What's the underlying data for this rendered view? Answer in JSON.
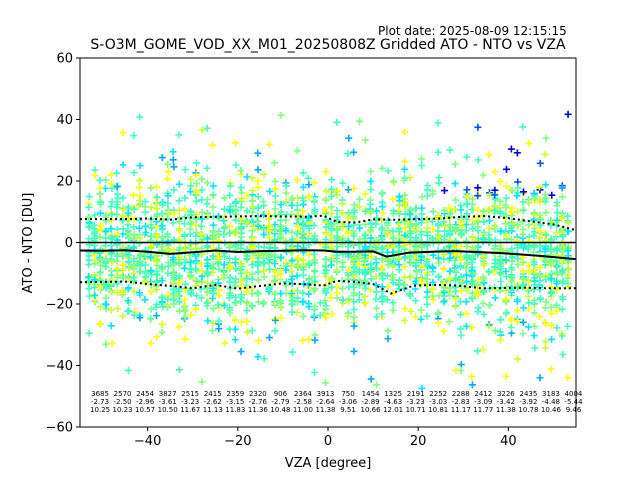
{
  "plot_date": "Plot date: 2025-08-09 12:15:15",
  "chart_data": {
    "type": "scatter",
    "title": "S-O3M_GOME_VOD_XX_M01_20250808Z Gridded ATO - NTO vs VZA",
    "xlabel": "VZA [degree]",
    "ylabel": "ATO - NTO [DU]",
    "xlim": [
      -55,
      55
    ],
    "ylim": [
      -60,
      60
    ],
    "xticks": [
      -40,
      -20,
      0,
      20,
      40
    ],
    "yticks": [
      -60,
      -40,
      -20,
      0,
      20,
      40,
      60
    ],
    "marker": "plus",
    "colors": {
      "yellow": "#ffff00",
      "yellow_green": "#c8ff30",
      "light_green": "#80ff80",
      "aqua_green": "#40ffc0",
      "cyan": "#00e5ff",
      "sky": "#00a8ff",
      "blue": "#0050ff",
      "dark_blue": "#0000e0",
      "zero_line": "#000000",
      "mean_line": "#000000",
      "std_line": "#000000"
    },
    "bins": [
      {
        "center": -51,
        "count": "3685",
        "mean": "-2.73",
        "std": "10.25"
      },
      {
        "center": -46,
        "count": "2570",
        "mean": "-2.50",
        "std": "10.23"
      },
      {
        "center": -41,
        "count": "2454",
        "mean": "-2.96",
        "std": "10.57"
      },
      {
        "center": -36,
        "count": "3827",
        "mean": "-3.61",
        "std": "10.50"
      },
      {
        "center": -31,
        "count": "2515",
        "mean": "-3.23",
        "std": "11.67"
      },
      {
        "center": -26,
        "count": "2415",
        "mean": "-2.62",
        "std": "11.13"
      },
      {
        "center": -21,
        "count": "2359",
        "mean": "-3.15",
        "std": "11.83"
      },
      {
        "center": -16,
        "count": "2320",
        "mean": "-2.76",
        "std": "11.36"
      },
      {
        "center": -11,
        "count": "906",
        "mean": "-2.79",
        "std": "10.48"
      },
      {
        "center": -6,
        "count": "2364",
        "mean": "-2.58",
        "std": "11.00"
      },
      {
        "center": -1,
        "count": "3913",
        "mean": "-2.64",
        "std": "11.38"
      },
      {
        "center": 4,
        "count": "750",
        "mean": "-3.06",
        "std": "9.51"
      },
      {
        "center": 9,
        "count": "1454",
        "mean": "-2.89",
        "std": "10.66"
      },
      {
        "center": 14,
        "count": "1325",
        "mean": "-4.63",
        "std": "12.01"
      },
      {
        "center": 19,
        "count": "2191",
        "mean": "-3.23",
        "std": "10.71"
      },
      {
        "center": 24,
        "count": "2252",
        "mean": "-3.03",
        "std": "10.81"
      },
      {
        "center": 29,
        "count": "2288",
        "mean": "-2.83",
        "std": "11.17"
      },
      {
        "center": 34,
        "count": "2412",
        "mean": "-3.09",
        "std": "11.77"
      },
      {
        "center": 39,
        "count": "3226",
        "mean": "-3.42",
        "std": "11.38"
      },
      {
        "center": 44,
        "count": "2435",
        "mean": "-3.92",
        "std": "10.78"
      },
      {
        "center": 49,
        "count": "3183",
        "mean": "-4.48",
        "std": "10.46"
      },
      {
        "center": 54,
        "count": "4004",
        "mean": "-5.44",
        "std": "9.46"
      }
    ],
    "mean_curve": [
      [
        -55,
        -2.6
      ],
      [
        -50,
        -2.7
      ],
      [
        -45,
        -2.5
      ],
      [
        -40,
        -3.0
      ],
      [
        -35,
        -3.7
      ],
      [
        -30,
        -3.2
      ],
      [
        -25,
        -2.6
      ],
      [
        -20,
        -3.1
      ],
      [
        -15,
        -2.8
      ],
      [
        -10,
        -2.7
      ],
      [
        -5,
        -2.5
      ],
      [
        -1,
        -2.6
      ],
      [
        2,
        -3.0
      ],
      [
        6,
        -3.0
      ],
      [
        10,
        -2.9
      ],
      [
        13,
        -4.6
      ],
      [
        18,
        -3.3
      ],
      [
        23,
        -3.0
      ],
      [
        28,
        -2.8
      ],
      [
        33,
        -3.1
      ],
      [
        38,
        -3.4
      ],
      [
        43,
        -3.9
      ],
      [
        48,
        -4.5
      ],
      [
        55,
        -5.4
      ]
    ],
    "upper_std_curve": [
      [
        -55,
        7.6
      ],
      [
        -45,
        7.6
      ],
      [
        -40,
        7.8
      ],
      [
        -35,
        7.4
      ],
      [
        -30,
        8.2
      ],
      [
        -25,
        8.3
      ],
      [
        -20,
        8.5
      ],
      [
        -15,
        8.6
      ],
      [
        -10,
        8.5
      ],
      [
        -5,
        8.4
      ],
      [
        -1,
        8.7
      ],
      [
        2,
        6.7
      ],
      [
        6,
        6.5
      ],
      [
        10,
        7.5
      ],
      [
        15,
        7.4
      ],
      [
        20,
        7.6
      ],
      [
        25,
        7.8
      ],
      [
        30,
        8.4
      ],
      [
        35,
        8.6
      ],
      [
        40,
        7.9
      ],
      [
        45,
        6.9
      ],
      [
        50,
        5.9
      ],
      [
        55,
        4.0
      ]
    ],
    "lower_std_curve": [
      [
        -55,
        -12.9
      ],
      [
        -45,
        -12.7
      ],
      [
        -40,
        -13.5
      ],
      [
        -35,
        -14.1
      ],
      [
        -30,
        -14.9
      ],
      [
        -25,
        -13.8
      ],
      [
        -20,
        -15.0
      ],
      [
        -15,
        -14.1
      ],
      [
        -10,
        -13.3
      ],
      [
        -5,
        -13.6
      ],
      [
        -1,
        -14.0
      ],
      [
        2,
        -12.5
      ],
      [
        6,
        -12.8
      ],
      [
        10,
        -13.5
      ],
      [
        14,
        -16.6
      ],
      [
        19,
        -14.0
      ],
      [
        24,
        -13.8
      ],
      [
        29,
        -14.0
      ],
      [
        34,
        -14.9
      ],
      [
        39,
        -14.8
      ],
      [
        44,
        -14.7
      ],
      [
        49,
        -14.9
      ],
      [
        55,
        -14.9
      ]
    ]
  }
}
